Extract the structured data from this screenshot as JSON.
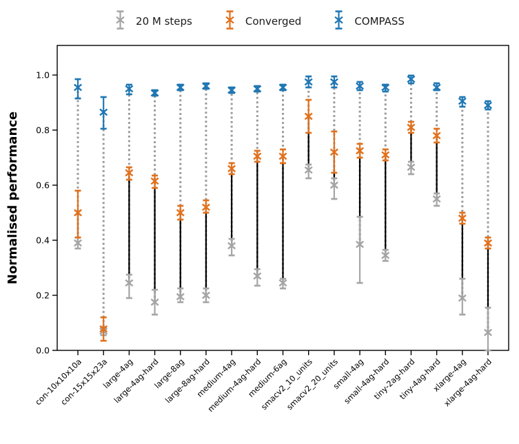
{
  "legend": {
    "items": [
      {
        "label": "20 M steps",
        "color": "#a5a5a5"
      },
      {
        "label": "Converged",
        "color": "#e2711c"
      },
      {
        "label": "COMPASS",
        "color": "#1f77b4"
      }
    ]
  },
  "chart_data": {
    "type": "scatter",
    "subtype": "errorbar",
    "title": "",
    "xlabel": "",
    "ylabel": "Normalised performance",
    "ylim": [
      0,
      1.11
    ],
    "yticks": [
      "0.0",
      "0.2",
      "0.4",
      "0.6",
      "0.8",
      "1.0"
    ],
    "grid": false,
    "legend_position": "top-center",
    "categories": [
      "con-10x10x10a",
      "con-15x15x23a",
      "large-4ag",
      "large-4ag-hard",
      "large-8ag",
      "large-8ag-hard",
      "medium-4ag",
      "medium-4ag-hard",
      "medium-6ag",
      "smacv2_10_units",
      "smacv2_20_units",
      "small-4ag",
      "small-4ag-hard",
      "tiny-2ag-hard",
      "tiny-4ag-hard",
      "xlarge-4ag",
      "xlarge-4ag-hard"
    ],
    "series": [
      {
        "name": "20 M steps",
        "color": "#a5a5a5",
        "marker": "x-errorbar",
        "values": [
          0.39,
          0.07,
          0.245,
          0.175,
          0.195,
          0.2,
          0.38,
          0.27,
          0.245,
          0.655,
          0.6,
          0.385,
          0.345,
          0.665,
          0.55,
          0.19,
          0.065
        ],
        "lo": [
          0.37,
          0.055,
          0.19,
          0.13,
          0.175,
          0.175,
          0.345,
          0.235,
          0.225,
          0.625,
          0.55,
          0.245,
          0.325,
          0.64,
          0.525,
          0.13,
          0.0
        ],
        "hi": [
          0.41,
          0.085,
          0.275,
          0.22,
          0.225,
          0.225,
          0.405,
          0.295,
          0.26,
          0.675,
          0.625,
          0.485,
          0.365,
          0.685,
          0.57,
          0.26,
          0.155
        ]
      },
      {
        "name": "Converged",
        "color": "#e2711c",
        "marker": "x-errorbar",
        "values": [
          0.5,
          0.078,
          0.645,
          0.615,
          0.5,
          0.52,
          0.66,
          0.705,
          0.705,
          0.85,
          0.72,
          0.725,
          0.71,
          0.81,
          0.78,
          0.48,
          0.39
        ],
        "lo": [
          0.41,
          0.035,
          0.62,
          0.59,
          0.475,
          0.5,
          0.64,
          0.685,
          0.68,
          0.79,
          0.645,
          0.7,
          0.69,
          0.79,
          0.755,
          0.46,
          0.37
        ],
        "hi": [
          0.58,
          0.12,
          0.665,
          0.635,
          0.525,
          0.545,
          0.68,
          0.725,
          0.73,
          0.91,
          0.795,
          0.75,
          0.73,
          0.83,
          0.805,
          0.5,
          0.41
        ]
      },
      {
        "name": "COMPASS",
        "color": "#1f77b4",
        "marker": "x-errorbar",
        "values": [
          0.955,
          0.865,
          0.95,
          0.935,
          0.955,
          0.96,
          0.945,
          0.95,
          0.955,
          0.975,
          0.975,
          0.96,
          0.955,
          0.985,
          0.955,
          0.905,
          0.89
        ],
        "lo": [
          0.915,
          0.805,
          0.93,
          0.925,
          0.945,
          0.95,
          0.935,
          0.94,
          0.945,
          0.955,
          0.955,
          0.945,
          0.94,
          0.97,
          0.945,
          0.885,
          0.875
        ],
        "hi": [
          0.985,
          0.92,
          0.965,
          0.945,
          0.965,
          0.97,
          0.955,
          0.96,
          0.965,
          0.995,
          0.995,
          0.975,
          0.965,
          0.998,
          0.97,
          0.92,
          0.905
        ]
      }
    ],
    "connectors": [
      {
        "from": "20 M steps",
        "to": "COMPASS",
        "style": "dotted",
        "color": "#999999"
      },
      {
        "from": "20 M steps",
        "to": "Converged",
        "style": "solid",
        "color": "#000000"
      }
    ]
  }
}
